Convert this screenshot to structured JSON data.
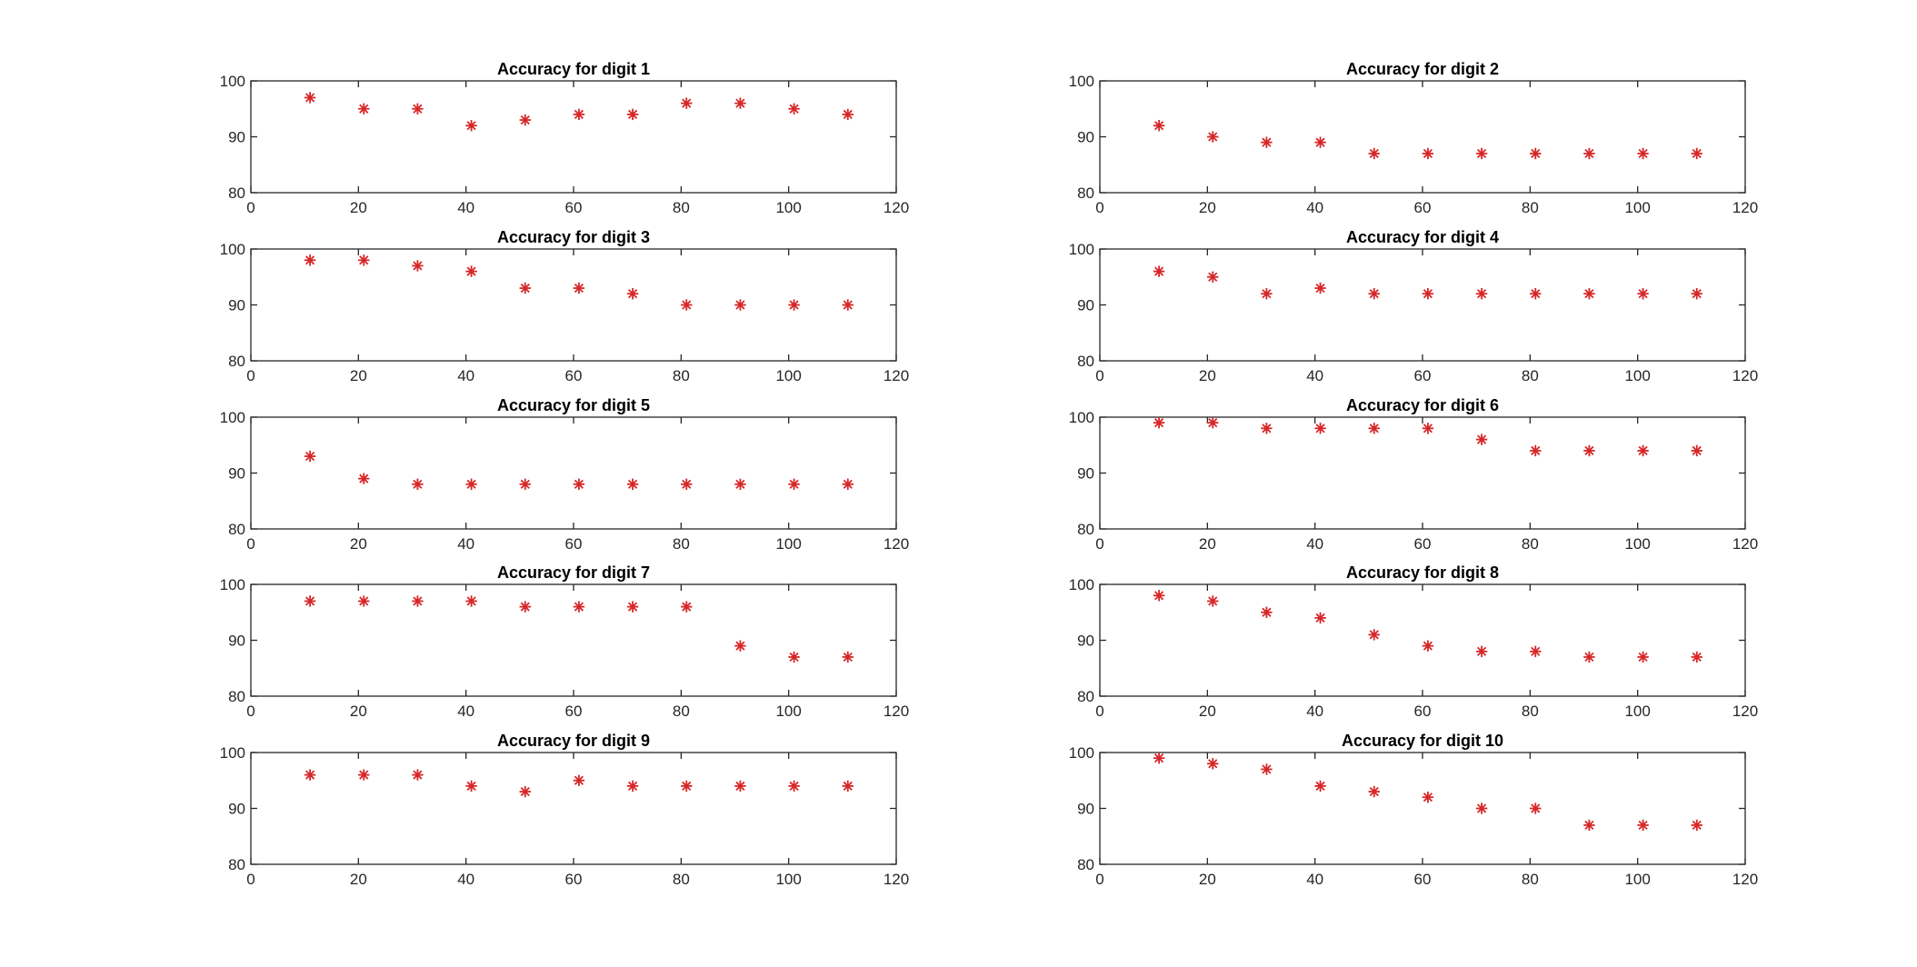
{
  "chart_data": [
    {
      "type": "scatter",
      "title": "Accuracy for digit 1",
      "xlim": [
        0,
        120
      ],
      "ylim": [
        80,
        100
      ],
      "xticks": [
        0,
        20,
        40,
        60,
        80,
        100,
        120
      ],
      "yticks": [
        80,
        90,
        100
      ],
      "x": [
        11,
        21,
        31,
        41,
        51,
        61,
        71,
        81,
        91,
        101,
        111
      ],
      "y": [
        97,
        95,
        95,
        92,
        93,
        94,
        94,
        96,
        96,
        95,
        94
      ],
      "marker": "asterisk",
      "color": "#d62728",
      "grid": false
    },
    {
      "type": "scatter",
      "title": "Accuracy for digit 2",
      "xlim": [
        0,
        120
      ],
      "ylim": [
        80,
        100
      ],
      "xticks": [
        0,
        20,
        40,
        60,
        80,
        100,
        120
      ],
      "yticks": [
        80,
        90,
        100
      ],
      "x": [
        11,
        21,
        31,
        41,
        51,
        61,
        71,
        81,
        91,
        101,
        111
      ],
      "y": [
        92,
        90,
        89,
        89,
        87,
        87,
        87,
        87,
        87,
        87,
        87
      ],
      "marker": "asterisk",
      "color": "#d62728",
      "grid": false
    },
    {
      "type": "scatter",
      "title": "Accuracy for digit 3",
      "xlim": [
        0,
        120
      ],
      "ylim": [
        80,
        100
      ],
      "xticks": [
        0,
        20,
        40,
        60,
        80,
        100,
        120
      ],
      "yticks": [
        80,
        90,
        100
      ],
      "x": [
        11,
        21,
        31,
        41,
        51,
        61,
        71,
        81,
        91,
        101,
        111
      ],
      "y": [
        98,
        98,
        97,
        96,
        93,
        93,
        92,
        90,
        90,
        90,
        90
      ],
      "marker": "asterisk",
      "color": "#d62728",
      "grid": false
    },
    {
      "type": "scatter",
      "title": "Accuracy for digit 4",
      "xlim": [
        0,
        120
      ],
      "ylim": [
        80,
        100
      ],
      "xticks": [
        0,
        20,
        40,
        60,
        80,
        100,
        120
      ],
      "yticks": [
        80,
        90,
        100
      ],
      "x": [
        11,
        21,
        31,
        41,
        51,
        61,
        71,
        81,
        91,
        101,
        111
      ],
      "y": [
        96,
        95,
        92,
        93,
        92,
        92,
        92,
        92,
        92,
        92,
        92
      ],
      "marker": "asterisk",
      "color": "#d62728",
      "grid": false
    },
    {
      "type": "scatter",
      "title": "Accuracy for digit 5",
      "xlim": [
        0,
        120
      ],
      "ylim": [
        80,
        100
      ],
      "xticks": [
        0,
        20,
        40,
        60,
        80,
        100,
        120
      ],
      "yticks": [
        80,
        90,
        100
      ],
      "x": [
        11,
        21,
        31,
        41,
        51,
        61,
        71,
        81,
        91,
        101,
        111
      ],
      "y": [
        93,
        89,
        88,
        88,
        88,
        88,
        88,
        88,
        88,
        88,
        88
      ],
      "marker": "asterisk",
      "color": "#d62728",
      "grid": false
    },
    {
      "type": "scatter",
      "title": "Accuracy for digit 6",
      "xlim": [
        0,
        120
      ],
      "ylim": [
        80,
        100
      ],
      "xticks": [
        0,
        20,
        40,
        60,
        80,
        100,
        120
      ],
      "yticks": [
        80,
        90,
        100
      ],
      "x": [
        11,
        21,
        31,
        41,
        51,
        61,
        71,
        81,
        91,
        101,
        111
      ],
      "y": [
        99,
        99,
        98,
        98,
        98,
        98,
        96,
        94,
        94,
        94,
        94
      ],
      "marker": "asterisk",
      "color": "#d62728",
      "grid": false
    },
    {
      "type": "scatter",
      "title": "Accuracy for digit 7",
      "xlim": [
        0,
        120
      ],
      "ylim": [
        80,
        100
      ],
      "xticks": [
        0,
        20,
        40,
        60,
        80,
        100,
        120
      ],
      "yticks": [
        80,
        90,
        100
      ],
      "x": [
        11,
        21,
        31,
        41,
        51,
        61,
        71,
        81,
        91,
        101,
        111
      ],
      "y": [
        97,
        97,
        97,
        97,
        96,
        96,
        96,
        96,
        89,
        87,
        87
      ],
      "marker": "asterisk",
      "color": "#d62728",
      "grid": false
    },
    {
      "type": "scatter",
      "title": "Accuracy for digit 8",
      "xlim": [
        0,
        120
      ],
      "ylim": [
        80,
        100
      ],
      "xticks": [
        0,
        20,
        40,
        60,
        80,
        100,
        120
      ],
      "yticks": [
        80,
        90,
        100
      ],
      "x": [
        11,
        21,
        31,
        41,
        51,
        61,
        71,
        81,
        91,
        101,
        111
      ],
      "y": [
        98,
        97,
        95,
        94,
        91,
        89,
        88,
        88,
        87,
        87,
        87
      ],
      "marker": "asterisk",
      "color": "#d62728",
      "grid": false
    },
    {
      "type": "scatter",
      "title": "Accuracy for digit 9",
      "xlim": [
        0,
        120
      ],
      "ylim": [
        80,
        100
      ],
      "xticks": [
        0,
        20,
        40,
        60,
        80,
        100,
        120
      ],
      "yticks": [
        80,
        90,
        100
      ],
      "x": [
        11,
        21,
        31,
        41,
        51,
        61,
        71,
        81,
        91,
        101,
        111
      ],
      "y": [
        96,
        96,
        96,
        94,
        93,
        95,
        94,
        94,
        94,
        94,
        94
      ],
      "marker": "asterisk",
      "color": "#d62728",
      "grid": false
    },
    {
      "type": "scatter",
      "title": "Accuracy for digit 10",
      "xlim": [
        0,
        120
      ],
      "ylim": [
        80,
        100
      ],
      "xticks": [
        0,
        20,
        40,
        60,
        80,
        100,
        120
      ],
      "yticks": [
        80,
        90,
        100
      ],
      "x": [
        11,
        21,
        31,
        41,
        51,
        61,
        71,
        81,
        91,
        101,
        111
      ],
      "y": [
        99,
        98,
        97,
        94,
        93,
        92,
        90,
        90,
        87,
        87,
        87
      ],
      "marker": "asterisk",
      "color": "#d62728",
      "grid": false
    }
  ]
}
